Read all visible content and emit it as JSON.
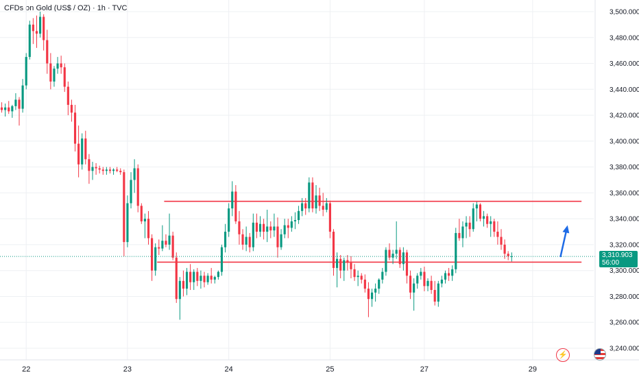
{
  "header": {
    "title": "CFDs on Gold (US$ / OZ) · 1h · TVC"
  },
  "price_label": {
    "price": "3,310.903",
    "countdown": "56:00"
  },
  "icons": {
    "alert": "lightning-alert-icon",
    "flag": "us-flag-icon"
  },
  "colors": {
    "up": "#089981",
    "down": "#f23645",
    "level": "#f23645",
    "arrow": "#1e6be6",
    "last": "#089981"
  },
  "chart_data": {
    "type": "candlestick",
    "y_ticks": [
      "3,500.000",
      "3,480.000",
      "3,460.000",
      "3,440.000",
      "3,420.000",
      "3,400.000",
      "3,380.000",
      "3,360.000",
      "3,340.000",
      "3,320.000",
      "3,300.000",
      "3,280.000",
      "3,260.000",
      "3,240.000"
    ],
    "ylim": [
      3231,
      3509
    ],
    "x_ticks": [
      {
        "label": "22",
        "bar": 7
      },
      {
        "label": "23",
        "bar": 36
      },
      {
        "label": "24",
        "bar": 65
      },
      {
        "label": "25",
        "bar": 94
      },
      {
        "label": "27",
        "bar": 121
      },
      {
        "label": "29",
        "bar": 152
      }
    ],
    "bars_total": 170,
    "last_price": 3310.9,
    "levels": [
      {
        "name": "resistance",
        "price": 3353.5,
        "from_bar": 47,
        "to_bar": 166
      },
      {
        "name": "support",
        "price": 3306.5,
        "from_bar": 45,
        "to_bar": 166
      }
    ],
    "arrow": {
      "from_bar": 160,
      "from_price": 3311,
      "to_bar": 162,
      "to_price": 3335
    },
    "ohlc": [
      [
        3426,
        3430,
        3422,
        3424
      ],
      [
        3424,
        3429,
        3419,
        3426
      ],
      [
        3426,
        3431,
        3421,
        3423
      ],
      [
        3423,
        3428,
        3418,
        3427
      ],
      [
        3427,
        3437,
        3424,
        3432
      ],
      [
        3432,
        3434,
        3412,
        3425
      ],
      [
        3425,
        3448,
        3422,
        3443
      ],
      [
        3443,
        3468,
        3440,
        3465
      ],
      [
        3465,
        3493,
        3463,
        3490
      ],
      [
        3490,
        3495,
        3475,
        3485
      ],
      [
        3485,
        3497,
        3472,
        3483
      ],
      [
        3483,
        3500,
        3480,
        3496
      ],
      [
        3496,
        3498,
        3470,
        3478
      ],
      [
        3478,
        3486,
        3452,
        3460
      ],
      [
        3460,
        3468,
        3440,
        3446
      ],
      [
        3446,
        3458,
        3442,
        3456
      ],
      [
        3456,
        3465,
        3452,
        3460
      ],
      [
        3460,
        3466,
        3452,
        3457
      ],
      [
        3457,
        3460,
        3438,
        3442
      ],
      [
        3442,
        3446,
        3420,
        3428
      ],
      [
        3428,
        3432,
        3415,
        3422
      ],
      [
        3422,
        3428,
        3392,
        3398
      ],
      [
        3398,
        3412,
        3372,
        3382
      ],
      [
        3382,
        3406,
        3378,
        3402
      ],
      [
        3402,
        3408,
        3382,
        3386
      ],
      [
        3386,
        3390,
        3367,
        3377
      ],
      [
        3377,
        3384,
        3370,
        3380
      ],
      [
        3380,
        3383,
        3374,
        3379
      ],
      [
        3379,
        3381,
        3375,
        3378
      ],
      [
        3378,
        3380,
        3374,
        3377
      ],
      [
        3377,
        3380,
        3374,
        3378
      ],
      [
        3378,
        3380,
        3375,
        3377
      ],
      [
        3377,
        3379,
        3374,
        3378
      ],
      [
        3378,
        3380,
        3376,
        3377
      ],
      [
        3377,
        3379,
        3374,
        3376
      ],
      [
        3376,
        3378,
        3311,
        3322
      ],
      [
        3322,
        3358,
        3318,
        3352
      ],
      [
        3352,
        3376,
        3348,
        3370
      ],
      [
        3370,
        3386,
        3360,
        3379
      ],
      [
        3379,
        3382,
        3345,
        3350
      ],
      [
        3350,
        3352,
        3336,
        3338
      ],
      [
        3338,
        3344,
        3325,
        3340
      ],
      [
        3340,
        3346,
        3320,
        3325
      ],
      [
        3325,
        3328,
        3292,
        3300
      ],
      [
        3300,
        3321,
        3296,
        3318
      ],
      [
        3318,
        3324,
        3312,
        3317
      ],
      [
        3317,
        3335,
        3315,
        3323
      ],
      [
        3323,
        3328,
        3318,
        3320
      ],
      [
        3320,
        3344,
        3316,
        3327
      ],
      [
        3327,
        3330,
        3308,
        3310
      ],
      [
        3310,
        3314,
        3275,
        3278
      ],
      [
        3278,
        3295,
        3262,
        3292
      ],
      [
        3292,
        3300,
        3280,
        3286
      ],
      [
        3286,
        3302,
        3281,
        3299
      ],
      [
        3299,
        3305,
        3285,
        3291
      ],
      [
        3291,
        3301,
        3285,
        3299
      ],
      [
        3299,
        3302,
        3288,
        3292
      ],
      [
        3292,
        3300,
        3286,
        3296
      ],
      [
        3296,
        3299,
        3287,
        3291
      ],
      [
        3291,
        3298,
        3289,
        3296
      ],
      [
        3296,
        3302,
        3290,
        3293
      ],
      [
        3293,
        3296,
        3290,
        3295
      ],
      [
        3295,
        3300,
        3293,
        3299
      ],
      [
        3299,
        3320,
        3296,
        3318
      ],
      [
        3318,
        3336,
        3314,
        3330
      ],
      [
        3330,
        3352,
        3326,
        3348
      ],
      [
        3348,
        3369,
        3342,
        3361
      ],
      [
        3361,
        3366,
        3336,
        3338
      ],
      [
        3338,
        3346,
        3320,
        3328
      ],
      [
        3328,
        3332,
        3316,
        3320
      ],
      [
        3320,
        3334,
        3315,
        3326
      ],
      [
        3326,
        3329,
        3314,
        3318
      ],
      [
        3318,
        3344,
        3315,
        3337
      ],
      [
        3337,
        3344,
        3325,
        3330
      ],
      [
        3330,
        3342,
        3326,
        3336
      ],
      [
        3336,
        3340,
        3324,
        3330
      ],
      [
        3330,
        3347,
        3322,
        3334
      ],
      [
        3334,
        3338,
        3325,
        3331
      ],
      [
        3331,
        3344,
        3326,
        3334
      ],
      [
        3334,
        3341,
        3310,
        3318
      ],
      [
        3318,
        3332,
        3316,
        3328
      ],
      [
        3328,
        3340,
        3325,
        3335
      ],
      [
        3335,
        3340,
        3325,
        3333
      ],
      [
        3333,
        3342,
        3330,
        3338
      ],
      [
        3338,
        3345,
        3332,
        3339
      ],
      [
        3339,
        3350,
        3336,
        3346
      ],
      [
        3346,
        3356,
        3342,
        3352
      ],
      [
        3352,
        3356,
        3343,
        3348
      ],
      [
        3348,
        3372,
        3345,
        3368
      ],
      [
        3368,
        3372,
        3345,
        3348
      ],
      [
        3348,
        3366,
        3344,
        3358
      ],
      [
        3358,
        3364,
        3346,
        3350
      ],
      [
        3350,
        3360,
        3342,
        3347
      ],
      [
        3347,
        3356,
        3345,
        3352
      ],
      [
        3352,
        3354,
        3325,
        3330
      ],
      [
        3330,
        3332,
        3296,
        3302
      ],
      [
        3302,
        3314,
        3287,
        3309
      ],
      [
        3309,
        3312,
        3294,
        3300
      ],
      [
        3300,
        3310,
        3292,
        3308
      ],
      [
        3308,
        3312,
        3300,
        3306
      ],
      [
        3306,
        3311,
        3294,
        3301
      ],
      [
        3301,
        3305,
        3292,
        3295
      ],
      [
        3295,
        3300,
        3288,
        3296
      ],
      [
        3296,
        3298,
        3290,
        3293
      ],
      [
        3293,
        3297,
        3283,
        3286
      ],
      [
        3286,
        3291,
        3264,
        3278
      ],
      [
        3278,
        3286,
        3272,
        3283
      ],
      [
        3283,
        3290,
        3276,
        3286
      ],
      [
        3286,
        3294,
        3282,
        3293
      ],
      [
        3293,
        3302,
        3290,
        3299
      ],
      [
        3299,
        3318,
        3296,
        3316
      ],
      [
        3316,
        3321,
        3308,
        3310
      ],
      [
        3310,
        3316,
        3305,
        3313
      ],
      [
        3313,
        3338,
        3309,
        3316
      ],
      [
        3316,
        3318,
        3302,
        3305
      ],
      [
        3305,
        3318,
        3300,
        3314
      ],
      [
        3314,
        3316,
        3290,
        3296
      ],
      [
        3296,
        3300,
        3278,
        3283
      ],
      [
        3283,
        3294,
        3269,
        3290
      ],
      [
        3290,
        3298,
        3286,
        3296
      ],
      [
        3296,
        3302,
        3293,
        3299
      ],
      [
        3299,
        3303,
        3284,
        3288
      ],
      [
        3288,
        3294,
        3284,
        3292
      ],
      [
        3292,
        3296,
        3282,
        3285
      ],
      [
        3285,
        3292,
        3273,
        3276
      ],
      [
        3276,
        3292,
        3272,
        3290
      ],
      [
        3290,
        3296,
        3287,
        3293
      ],
      [
        3293,
        3300,
        3290,
        3298
      ],
      [
        3298,
        3302,
        3292,
        3296
      ],
      [
        3296,
        3304,
        3292,
        3301
      ],
      [
        3301,
        3333,
        3298,
        3329
      ],
      [
        3329,
        3340,
        3323,
        3325
      ],
      [
        3325,
        3338,
        3318,
        3334
      ],
      [
        3334,
        3342,
        3325,
        3337
      ],
      [
        3337,
        3342,
        3326,
        3332
      ],
      [
        3332,
        3352,
        3330,
        3348
      ],
      [
        3348,
        3353,
        3338,
        3351
      ],
      [
        3351,
        3352,
        3338,
        3340
      ],
      [
        3340,
        3346,
        3334,
        3342
      ],
      [
        3342,
        3344,
        3333,
        3336
      ],
      [
        3336,
        3342,
        3326,
        3338
      ],
      [
        3338,
        3340,
        3326,
        3330
      ],
      [
        3330,
        3338,
        3320,
        3326
      ],
      [
        3326,
        3332,
        3316,
        3320
      ],
      [
        3320,
        3324,
        3309,
        3313
      ],
      [
        3313,
        3315,
        3308,
        3311
      ],
      [
        3311,
        3314,
        3307,
        3311
      ]
    ],
    "xlabel": "",
    "ylabel": ""
  }
}
